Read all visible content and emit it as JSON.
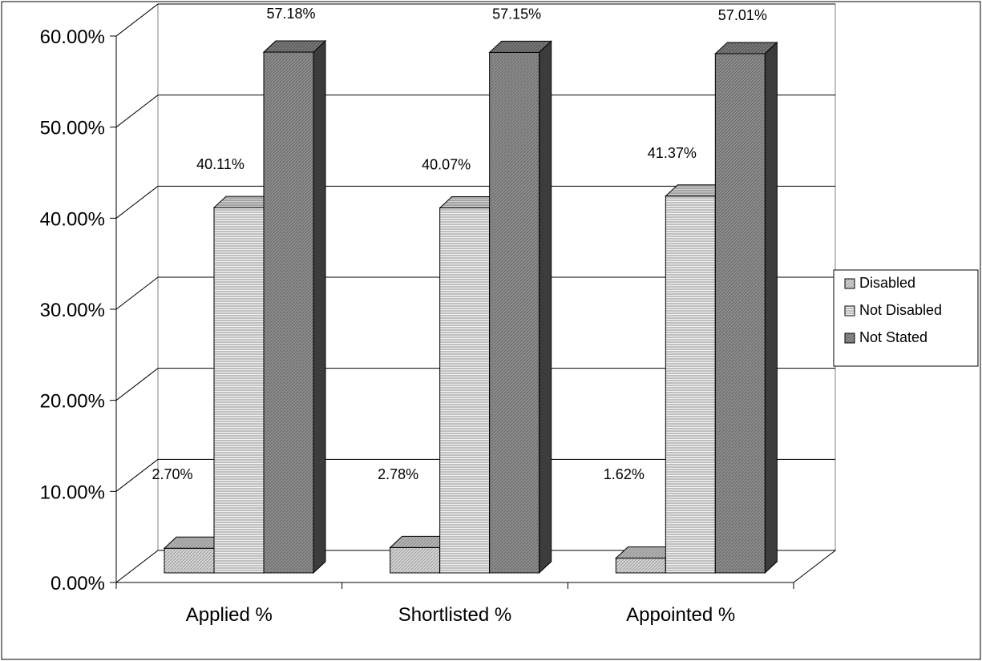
{
  "chart_data": {
    "type": "bar",
    "three_d": true,
    "categories": [
      "Applied %",
      "Shortlisted %",
      "Appointed %"
    ],
    "series": [
      {
        "name": "Disabled",
        "values": [
          2.7,
          2.78,
          1.62
        ],
        "labels": [
          "2.70%",
          "2.78%",
          "1.62%"
        ],
        "pattern": "light-diagonal"
      },
      {
        "name": "Not Disabled",
        "values": [
          40.11,
          40.07,
          41.37
        ],
        "labels": [
          "40.11%",
          "40.07%",
          "41.37%"
        ],
        "pattern": "horizontal-lines"
      },
      {
        "name": "Not Stated",
        "values": [
          57.18,
          57.15,
          57.01
        ],
        "labels": [
          "57.18%",
          "57.15%",
          "57.01%"
        ],
        "pattern": "dark-diagonal"
      }
    ],
    "y_ticks": [
      "0.00%",
      "10.00%",
      "20.00%",
      "30.00%",
      "40.00%",
      "50.00%",
      "60.00%"
    ],
    "ylim": [
      0,
      60
    ],
    "grid": true,
    "legend_position": "right",
    "title": "",
    "xlabel": "",
    "ylabel": ""
  }
}
